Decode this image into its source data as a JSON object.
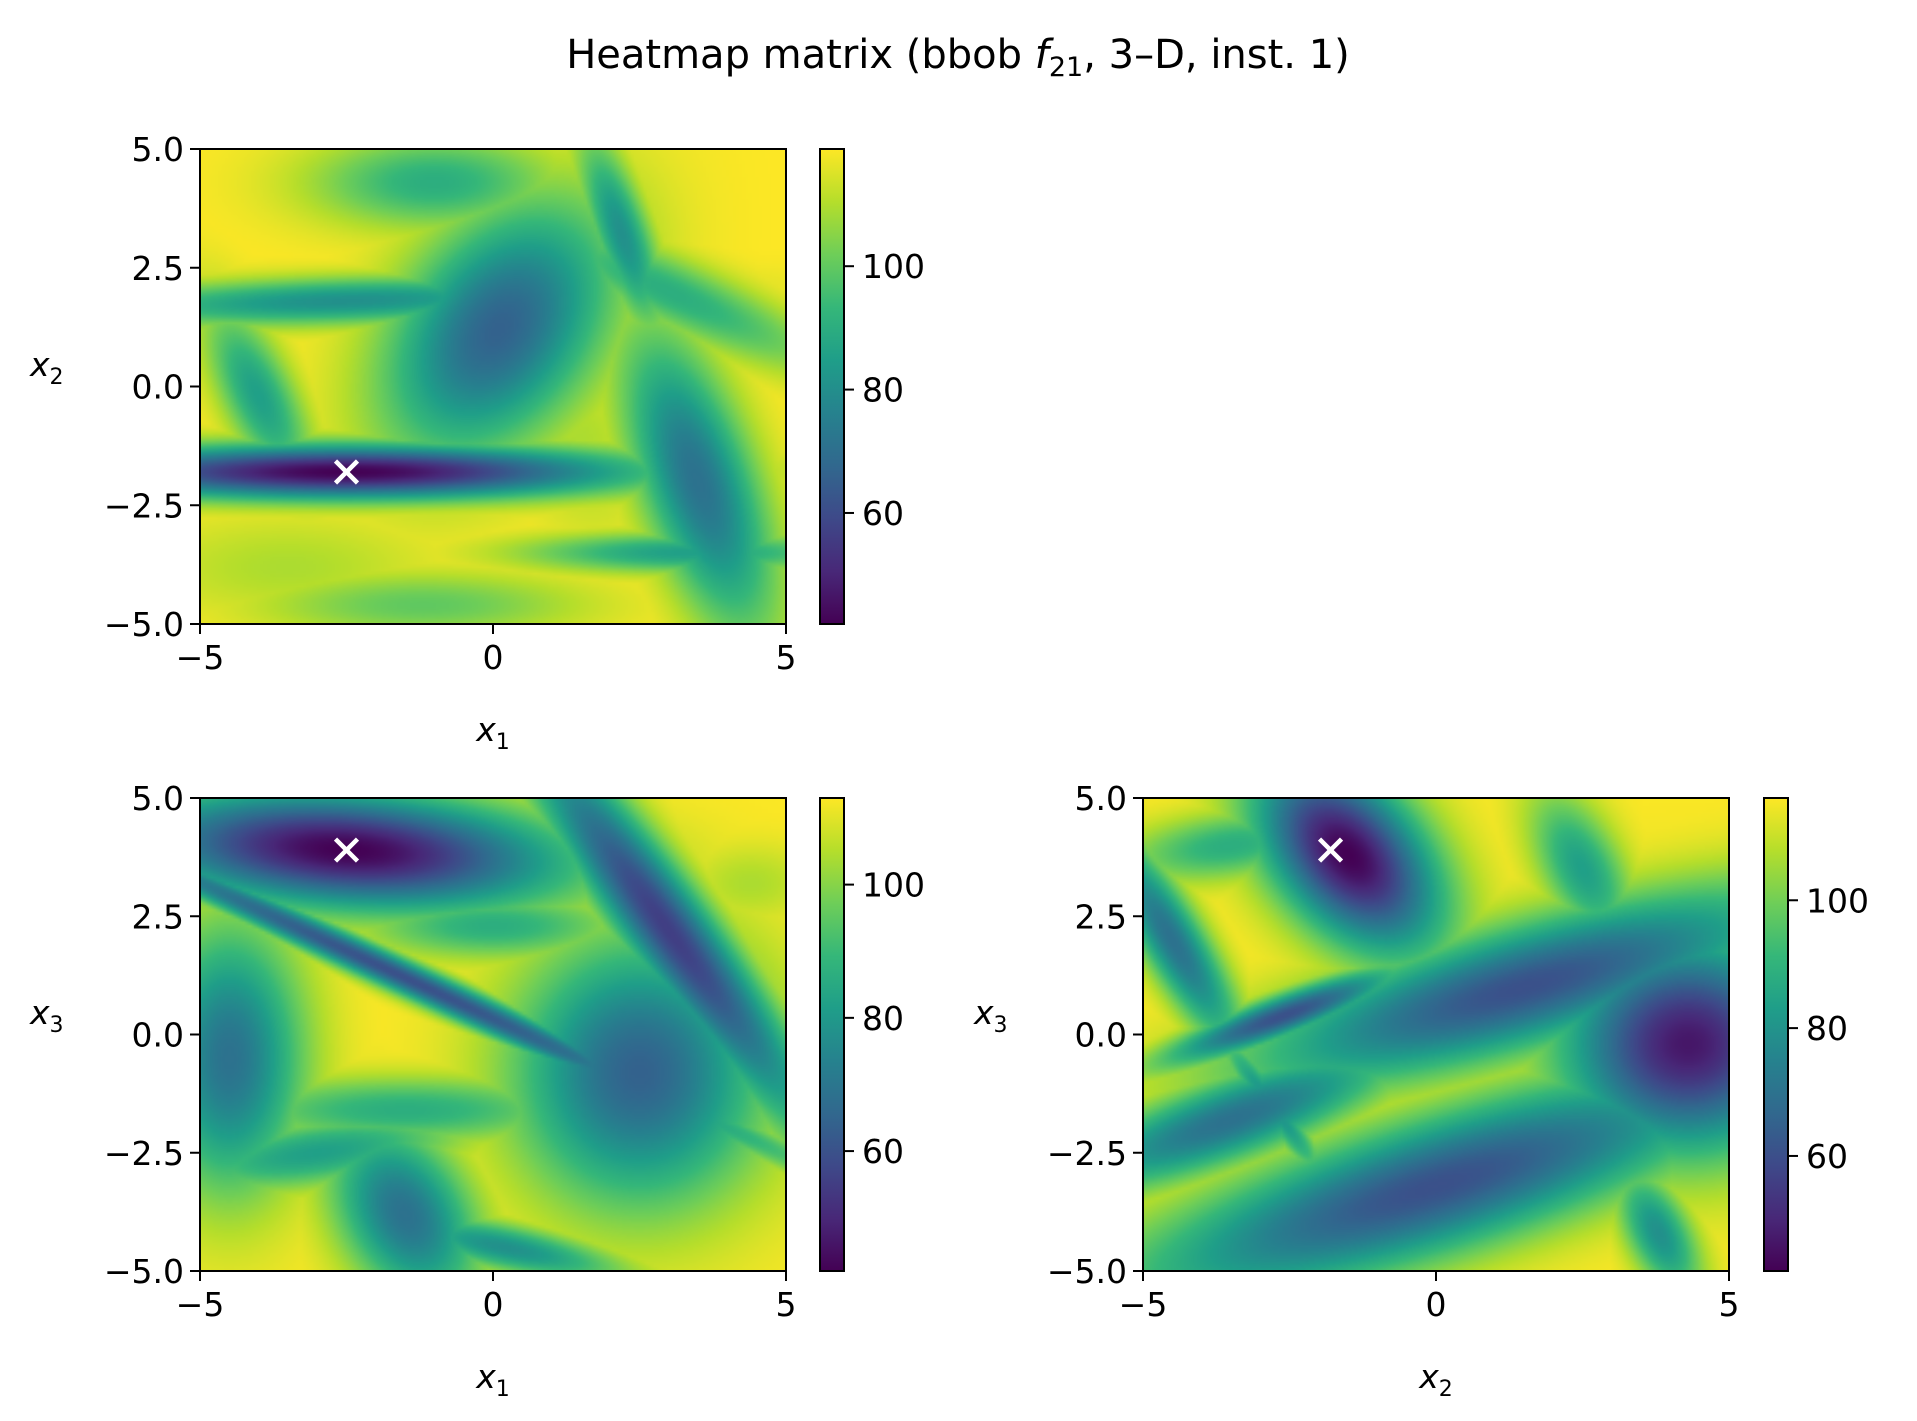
{
  "chart_data": {
    "type": "heatmap",
    "title": {
      "prefix": "Heatmap matrix (bbob ",
      "func_letter": "f",
      "func_sub": "21",
      "suffix": ", 3–D, inst. 1)"
    },
    "colormap": "viridis",
    "colormap_stops": [
      "#440154",
      "#482878",
      "#3e4989",
      "#31688e",
      "#26828e",
      "#1f9e89",
      "#35b779",
      "#6ece58",
      "#b5de2b",
      "#fde725"
    ],
    "marker_color": "#ffffff",
    "panels": [
      {
        "id": "x1-x2",
        "xlabel": {
          "var": "x",
          "sub": "1"
        },
        "ylabel": {
          "var": "x",
          "sub": "2"
        },
        "xlim": [
          -5,
          5
        ],
        "ylim": [
          -5,
          5
        ],
        "xticks": [
          -5,
          0,
          5
        ],
        "xtick_labels": [
          "−5",
          "0",
          "5"
        ],
        "yticks": [
          5.0,
          2.5,
          0.0,
          -2.5,
          -5.0
        ],
        "ytick_labels": [
          "5.0",
          "2.5",
          "0.0",
          "−2.5",
          "−5.0"
        ],
        "colorbar": {
          "range": [
            42,
            119
          ],
          "ticks": [
            60,
            80,
            100
          ],
          "tick_labels": [
            "60",
            "80",
            "100"
          ]
        },
        "minimum_marker": {
          "x": -2.5,
          "y": -1.8
        },
        "peaks": [
          {
            "x": -2.5,
            "y": -1.8,
            "a": 3.4,
            "b": 0.4,
            "ang": 0,
            "depth": 0
          },
          {
            "x": -2.5,
            "y": 1.8,
            "a": 3.2,
            "b": 0.35,
            "ang": 2,
            "depth": 8
          },
          {
            "x": 0.1,
            "y": 1.2,
            "a": 1.2,
            "b": 2.0,
            "ang": -25,
            "depth": 5
          },
          {
            "x": 2.2,
            "y": 3.2,
            "a": 0.35,
            "b": 1.5,
            "ang": 15,
            "depth": 8
          },
          {
            "x": 3.5,
            "y": -2.0,
            "a": 0.7,
            "b": 2.3,
            "ang": 15,
            "depth": 6
          },
          {
            "x": 3.3,
            "y": -3.5,
            "a": 2.0,
            "b": 0.3,
            "ang": 0,
            "depth": 9
          },
          {
            "x": -4.0,
            "y": -0.2,
            "a": 0.45,
            "b": 1.4,
            "ang": 20,
            "depth": 9
          },
          {
            "x": -1.0,
            "y": 4.3,
            "a": 1.5,
            "b": 0.7,
            "ang": 0,
            "depth": 10
          },
          {
            "x": -3.5,
            "y": -3.8,
            "a": 1.8,
            "b": 0.8,
            "ang": 0,
            "depth": 14
          },
          {
            "x": 3.0,
            "y": 2.0,
            "a": 0.5,
            "b": 2.2,
            "ang": 60,
            "depth": 10
          },
          {
            "x": -1.2,
            "y": -4.6,
            "a": 2.0,
            "b": 0.5,
            "ang": 0,
            "depth": 12
          },
          {
            "x": 1.5,
            "y": -1.2,
            "a": 0.8,
            "b": 1.5,
            "ang": 10,
            "depth": 14
          }
        ]
      },
      {
        "id": "x1-x3",
        "xlabel": {
          "var": "x",
          "sub": "1"
        },
        "ylabel": {
          "var": "x",
          "sub": "3"
        },
        "xlim": [
          -5,
          5
        ],
        "ylim": [
          -5,
          5
        ],
        "xticks": [
          -5,
          0,
          5
        ],
        "xtick_labels": [
          "−5",
          "0",
          "5"
        ],
        "yticks": [
          5.0,
          2.5,
          0.0,
          -2.5,
          -5.0
        ],
        "ytick_labels": [
          "5.0",
          "2.5",
          "0.0",
          "−2.5",
          "−5.0"
        ],
        "colorbar": {
          "range": [
            42,
            113
          ],
          "ticks": [
            60,
            80,
            100
          ],
          "tick_labels": [
            "60",
            "80",
            "100"
          ]
        },
        "minimum_marker": {
          "x": -2.5,
          "y": 3.9
        },
        "peaks": [
          {
            "x": -2.5,
            "y": 3.9,
            "a": 2.6,
            "b": 0.85,
            "ang": -5,
            "depth": 0
          },
          {
            "x": -1.5,
            "y": 1.2,
            "a": 5.5,
            "b": 0.25,
            "ang": -30,
            "depth": 4
          },
          {
            "x": 3.0,
            "y": 2.2,
            "a": 0.55,
            "b": 3.5,
            "ang": 30,
            "depth": 3
          },
          {
            "x": 2.5,
            "y": -0.8,
            "a": 1.5,
            "b": 2.0,
            "ang": 0,
            "depth": 5
          },
          {
            "x": -4.5,
            "y": -0.5,
            "a": 0.9,
            "b": 2.0,
            "ang": 0,
            "depth": 6
          },
          {
            "x": -1.5,
            "y": -3.8,
            "a": 0.8,
            "b": 1.4,
            "ang": 20,
            "depth": 6
          },
          {
            "x": -3.0,
            "y": -2.5,
            "a": 1.8,
            "b": 0.5,
            "ang": 10,
            "depth": 9
          },
          {
            "x": -1.5,
            "y": -1.6,
            "a": 2.2,
            "b": 0.5,
            "ang": 0,
            "depth": 10
          },
          {
            "x": 0.0,
            "y": 2.3,
            "a": 1.6,
            "b": 0.5,
            "ang": 0,
            "depth": 10
          },
          {
            "x": 0.2,
            "y": -4.5,
            "a": 1.5,
            "b": 0.35,
            "ang": -15,
            "depth": 8
          },
          {
            "x": 4.4,
            "y": 3.2,
            "a": 0.8,
            "b": 0.6,
            "ang": 0,
            "depth": 14
          }
        ]
      },
      {
        "id": "x2-x3",
        "xlabel": {
          "var": "x",
          "sub": "2"
        },
        "ylabel": {
          "var": "x",
          "sub": "3"
        },
        "xlim": [
          -5,
          5
        ],
        "ylim": [
          -5,
          5
        ],
        "xticks": [
          -5,
          0,
          5
        ],
        "xtick_labels": [
          "−5",
          "0",
          "5"
        ],
        "yticks": [
          5.0,
          2.5,
          0.0,
          -2.5,
          -5.0
        ],
        "ytick_labels": [
          "5.0",
          "2.5",
          "0.0",
          "−2.5",
          "−5.0"
        ],
        "colorbar": {
          "range": [
            42,
            116
          ],
          "ticks": [
            60,
            80,
            100
          ],
          "tick_labels": [
            "60",
            "80",
            "100"
          ]
        },
        "minimum_marker": {
          "x": -1.8,
          "y": 3.9
        },
        "peaks": [
          {
            "x": -1.5,
            "y": 3.8,
            "a": 0.9,
            "b": 1.6,
            "ang": 30,
            "depth": 0
          },
          {
            "x": 4.3,
            "y": -0.2,
            "a": 1.5,
            "b": 1.6,
            "ang": 0,
            "depth": 1
          },
          {
            "x": 1.5,
            "y": 1.0,
            "a": 3.5,
            "b": 0.9,
            "ang": 20,
            "depth": 4
          },
          {
            "x": 0.0,
            "y": -3.2,
            "a": 4.0,
            "b": 1.0,
            "ang": 22,
            "depth": 4
          },
          {
            "x": -3.5,
            "y": -1.8,
            "a": 2.3,
            "b": 0.6,
            "ang": 25,
            "depth": 6
          },
          {
            "x": -2.6,
            "y": 0.4,
            "a": 1.6,
            "b": 0.3,
            "ang": 25,
            "depth": 4
          },
          {
            "x": -2.8,
            "y": -1.5,
            "a": 1.3,
            "b": 0.2,
            "ang": 120,
            "depth": 8
          },
          {
            "x": -4.5,
            "y": 2.0,
            "a": 0.4,
            "b": 1.8,
            "ang": 25,
            "depth": 6
          },
          {
            "x": 2.5,
            "y": 3.5,
            "a": 0.5,
            "b": 1.2,
            "ang": 20,
            "depth": 9
          },
          {
            "x": 3.8,
            "y": -4.2,
            "a": 0.4,
            "b": 1.0,
            "ang": 20,
            "depth": 8
          },
          {
            "x": -3.5,
            "y": 4.0,
            "a": 1.3,
            "b": 0.5,
            "ang": 10,
            "depth": 10
          }
        ]
      }
    ]
  }
}
